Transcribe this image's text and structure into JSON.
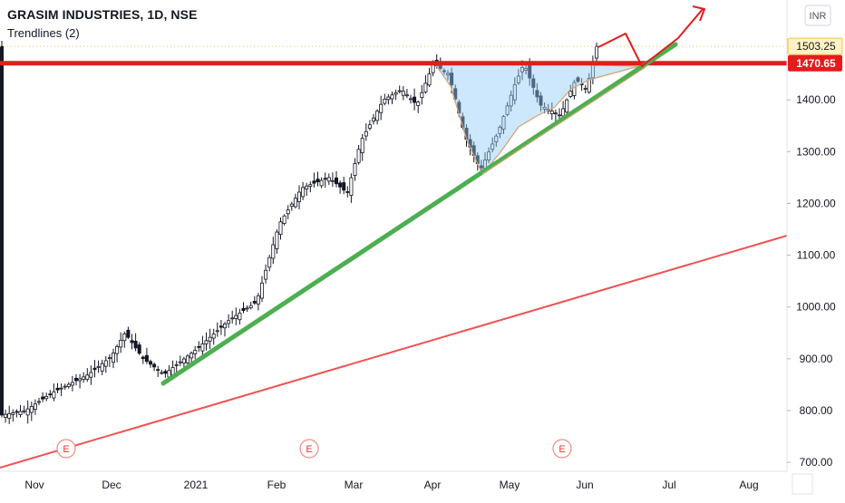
{
  "chart_data": {
    "type": "candlestick",
    "title": "GRASIM INDUSTRIES, 1D, NSE",
    "indicator": "Trendlines (2)",
    "currency": "INR",
    "y_ticks": [
      "1400.00",
      "1300.00",
      "1200.00",
      "1100.00",
      "1000.00",
      "900.00",
      "800.00",
      "700.00"
    ],
    "x_ticks": [
      "Nov",
      "Dec",
      "2021",
      "Feb",
      "Mar",
      "Apr",
      "May",
      "Jun",
      "Jul",
      "Aug"
    ],
    "price_labels": {
      "last": "1503.25",
      "resistance": "1470.65"
    },
    "earnings_markers": [
      "E",
      "E",
      "E"
    ],
    "ylim": [
      690,
      1560
    ],
    "key_prices": {
      "start": 790,
      "dec_peak": 950,
      "dec_low": 870,
      "feb_jump": 1160,
      "mar_high": 1420,
      "apr_top": 1470,
      "apr_low": 1265,
      "may_top": 1470,
      "jun_low": 1370,
      "last": 1503.25,
      "resistance": 1470.65
    }
  }
}
